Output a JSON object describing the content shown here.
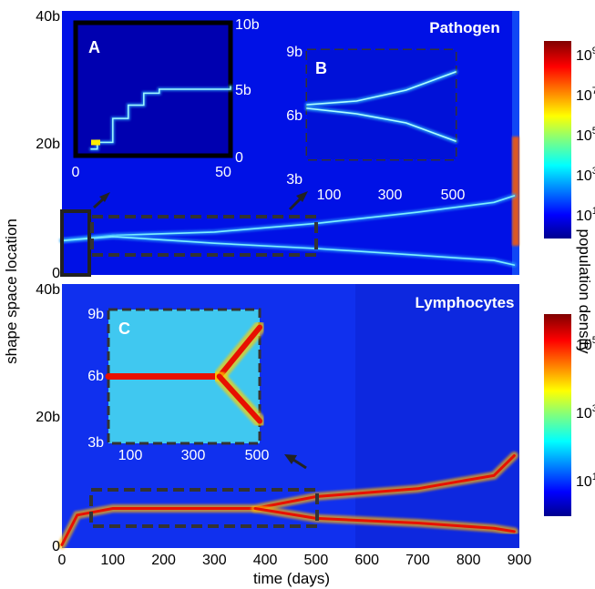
{
  "chart_data": [
    {
      "type": "heatmap",
      "title": "Pathogen",
      "xlabel": "time (days)",
      "ylabel": "shape space location",
      "xlim": [
        0,
        900
      ],
      "ylim": [
        0,
        40
      ],
      "y_ticks": [
        "0",
        "20b",
        "40b"
      ],
      "x_ticks": [
        "0",
        "100",
        "200",
        "300",
        "400",
        "500",
        "600",
        "700",
        "800",
        "900"
      ],
      "colorbar": {
        "label": "population density",
        "scale": "log",
        "ticks": [
          "10^1",
          "10^3",
          "10^5",
          "10^7",
          "10^9"
        ]
      },
      "tracks": [
        {
          "name": "upper branch",
          "points": [
            [
              0,
              5.2
            ],
            [
              100,
              6
            ],
            [
              300,
              6.5
            ],
            [
              500,
              7.8
            ],
            [
              700,
              9.5
            ],
            [
              850,
              11
            ],
            [
              890,
              12
            ]
          ]
        },
        {
          "name": "lower branch",
          "points": [
            [
              0,
              5.2
            ],
            [
              100,
              5.8
            ],
            [
              300,
              4.8
            ],
            [
              500,
              4.0
            ],
            [
              700,
              3.0
            ],
            [
              850,
              2.2
            ],
            [
              890,
              1.5
            ]
          ]
        }
      ],
      "insets": [
        {
          "letter": "A",
          "x_ticks": [
            "0",
            "50"
          ],
          "y_ticks": [
            "0",
            "5b",
            "10b"
          ],
          "xlim": [
            0,
            50
          ],
          "ylim": [
            0,
            10
          ],
          "steps": [
            [
              7,
              1
            ],
            [
              12,
              2.8
            ],
            [
              17,
              3.8
            ],
            [
              22,
              4.7
            ],
            [
              27,
              5.0
            ],
            [
              50,
              5.2
            ]
          ]
        },
        {
          "letter": "B",
          "x_ticks": [
            "100",
            "300",
            "500"
          ],
          "y_ticks": [
            "3b",
            "6b",
            "9b"
          ],
          "xlim": [
            50,
            500
          ],
          "ylim": [
            3,
            9
          ],
          "upper": [
            [
              50,
              6.0
            ],
            [
              200,
              6.2
            ],
            [
              350,
              6.8
            ],
            [
              500,
              7.8
            ]
          ],
          "lower": [
            [
              50,
              5.8
            ],
            [
              200,
              5.5
            ],
            [
              350,
              5.0
            ],
            [
              500,
              4.0
            ]
          ]
        }
      ]
    },
    {
      "type": "heatmap",
      "title": "Lymphocytes",
      "xlabel": "time (days)",
      "ylabel": "shape space location",
      "xlim": [
        0,
        900
      ],
      "ylim": [
        0,
        40
      ],
      "y_ticks": [
        "0",
        "20b",
        "40b"
      ],
      "x_ticks": [
        "0",
        "100",
        "200",
        "300",
        "400",
        "500",
        "600",
        "700",
        "800",
        "900"
      ],
      "colorbar": {
        "label": "population density",
        "scale": "log",
        "ticks": [
          "10^1",
          "10^3",
          "10^5"
        ]
      },
      "tracks": [
        {
          "name": "main",
          "points": [
            [
              0,
              0.5
            ],
            [
              30,
              5
            ],
            [
              100,
              6
            ],
            [
              300,
              6
            ],
            [
              380,
              6
            ],
            [
              500,
              7.8
            ],
            [
              700,
              9
            ],
            [
              850,
              11
            ],
            [
              890,
              14
            ]
          ]
        },
        {
          "name": "lower",
          "points": [
            [
              380,
              6
            ],
            [
              500,
              4.5
            ],
            [
              700,
              3.8
            ],
            [
              850,
              3
            ],
            [
              890,
              2.5
            ]
          ]
        }
      ],
      "insets": [
        {
          "letter": "C",
          "x_ticks": [
            "100",
            "300",
            "500"
          ],
          "y_ticks": [
            "3b",
            "6b",
            "9b"
          ],
          "xlim": [
            50,
            500
          ],
          "ylim": [
            3,
            9
          ],
          "main": [
            [
              50,
              6.0
            ],
            [
              380,
              6.0
            ]
          ],
          "upper": [
            [
              380,
              6.0
            ],
            [
              500,
              8.2
            ]
          ],
          "lower": [
            [
              380,
              6.0
            ],
            [
              500,
              4.0
            ]
          ]
        }
      ]
    }
  ]
}
